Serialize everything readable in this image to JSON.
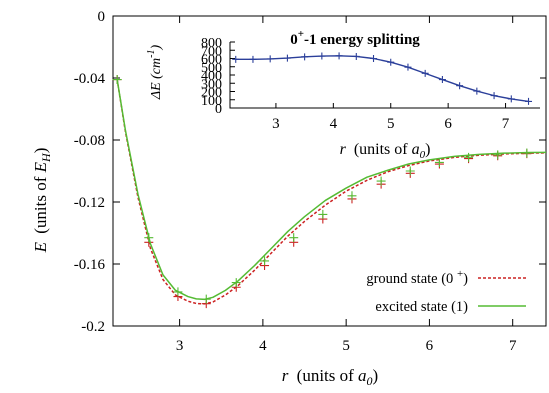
{
  "chart_data": [
    {
      "type": "line",
      "title": "",
      "xlabel": "r (units of a0)",
      "xlabel_parts": [
        "r",
        "(units of ",
        "a",
        "0",
        ")"
      ],
      "ylabel": "E (units of EH)",
      "ylabel_parts": [
        "E",
        "(units of ",
        "E",
        "H",
        ")"
      ],
      "xlim": [
        2.2,
        7.4
      ],
      "ylim": [
        -0.2,
        0
      ],
      "xticks": [
        3,
        4,
        5,
        6,
        7
      ],
      "yticks": [
        0,
        -0.04,
        -0.08,
        -0.12,
        -0.16,
        -0.2
      ],
      "ytick_labels": [
        "0",
        "-0.04",
        "-0.08",
        "-0.12",
        "-0.16",
        "-0.2"
      ],
      "grid": false,
      "legend_position": "bottom-right",
      "series": [
        {
          "name": "ground state (0 +)",
          "legend_parts": [
            "ground state (0 ",
            "+",
            ")"
          ],
          "color": "#cc2222",
          "dash": "dashed",
          "markers": "plus",
          "x": [
            2.25,
            2.35,
            2.5,
            2.65,
            2.8,
            2.95,
            3.1,
            3.2,
            3.3,
            3.4,
            3.55,
            3.7,
            3.9,
            4.1,
            4.3,
            4.5,
            4.75,
            5.0,
            5.25,
            5.5,
            5.75,
            6.0,
            6.3,
            6.6,
            6.9,
            7.2,
            7.4
          ],
          "y": [
            -0.041,
            -0.075,
            -0.117,
            -0.15,
            -0.17,
            -0.18,
            -0.184,
            -0.1855,
            -0.1857,
            -0.1845,
            -0.18,
            -0.174,
            -0.164,
            -0.153,
            -0.142,
            -0.1325,
            -0.122,
            -0.113,
            -0.106,
            -0.1005,
            -0.0965,
            -0.0935,
            -0.0912,
            -0.0898,
            -0.089,
            -0.0885,
            -0.0883
          ],
          "marker_x": [
            2.25,
            2.63,
            2.98,
            3.32,
            3.68,
            4.02,
            4.37,
            4.72,
            5.07,
            5.42,
            5.77,
            6.12,
            6.47,
            6.82,
            7.17
          ],
          "marker_y": [
            -0.041,
            -0.146,
            -0.181,
            -0.1856,
            -0.175,
            -0.161,
            -0.146,
            -0.131,
            -0.118,
            -0.1085,
            -0.1015,
            -0.0955,
            -0.092,
            -0.0902,
            -0.0888
          ]
        },
        {
          "name": "excited state (1)",
          "legend_parts": [
            "excited state (1)"
          ],
          "color": "#55bb33",
          "dash": "solid",
          "markers": "plus",
          "x": [
            2.25,
            2.35,
            2.5,
            2.65,
            2.8,
            2.95,
            3.1,
            3.2,
            3.3,
            3.4,
            3.55,
            3.7,
            3.9,
            4.1,
            4.3,
            4.5,
            4.75,
            5.0,
            5.25,
            5.5,
            5.75,
            6.0,
            6.3,
            6.6,
            6.9,
            7.2,
            7.4
          ],
          "y": [
            -0.041,
            -0.074,
            -0.115,
            -0.147,
            -0.167,
            -0.177,
            -0.181,
            -0.1825,
            -0.1828,
            -0.1815,
            -0.177,
            -0.171,
            -0.161,
            -0.15,
            -0.139,
            -0.1295,
            -0.119,
            -0.111,
            -0.104,
            -0.0995,
            -0.0955,
            -0.0928,
            -0.0906,
            -0.0893,
            -0.0885,
            -0.0881,
            -0.088
          ],
          "marker_x": [
            2.25,
            2.63,
            2.98,
            3.32,
            3.68,
            4.02,
            4.37,
            4.72,
            5.07,
            5.42,
            5.77,
            6.12,
            6.47,
            6.82,
            7.17
          ],
          "marker_y": [
            -0.041,
            -0.143,
            -0.178,
            -0.1827,
            -0.172,
            -0.158,
            -0.143,
            -0.128,
            -0.116,
            -0.1065,
            -0.1,
            -0.0945,
            -0.0912,
            -0.0896,
            -0.0884
          ]
        }
      ]
    },
    {
      "type": "line",
      "title": "0+-1 energy splitting",
      "title_parts": [
        "0",
        "+",
        "-1 energy splitting"
      ],
      "xlabel": "r (units of a0)",
      "xlabel_parts": [
        "r",
        "(units of ",
        "a",
        "0",
        ")"
      ],
      "ylabel": "ΔE (cm-1)",
      "ylabel_parts": [
        "ΔE (cm",
        "-1",
        ")"
      ],
      "xlim": [
        2.2,
        7.6
      ],
      "ylim": [
        0,
        800
      ],
      "xticks": [
        3,
        4,
        5,
        6,
        7
      ],
      "yticks": [
        0,
        100,
        200,
        300,
        400,
        500,
        600,
        700,
        800
      ],
      "ytick_labels": [
        "0",
        "100",
        "200",
        "300",
        "400",
        "500",
        "600",
        "700",
        "800"
      ],
      "grid": false,
      "legend_position": "none",
      "series": [
        {
          "color": "#2b3f9a",
          "dash": "solid",
          "markers": "plus",
          "x": [
            2.3,
            2.6,
            2.9,
            3.2,
            3.5,
            3.8,
            4.1,
            4.4,
            4.7,
            5.0,
            5.3,
            5.6,
            5.9,
            6.2,
            6.5,
            6.8,
            7.1,
            7.4
          ],
          "y": [
            590,
            590,
            595,
            605,
            620,
            630,
            632,
            625,
            600,
            555,
            495,
            420,
            345,
            270,
            205,
            150,
            110,
            80
          ],
          "marker_x": [
            2.3,
            2.6,
            2.9,
            3.2,
            3.5,
            3.8,
            4.1,
            4.4,
            4.7,
            5.0,
            5.3,
            5.6,
            5.9,
            6.2,
            6.5,
            6.8,
            7.1,
            7.4
          ],
          "marker_y": [
            590,
            590,
            595,
            605,
            620,
            630,
            632,
            625,
            600,
            555,
            495,
            420,
            345,
            270,
            205,
            150,
            110,
            80
          ]
        }
      ]
    }
  ]
}
